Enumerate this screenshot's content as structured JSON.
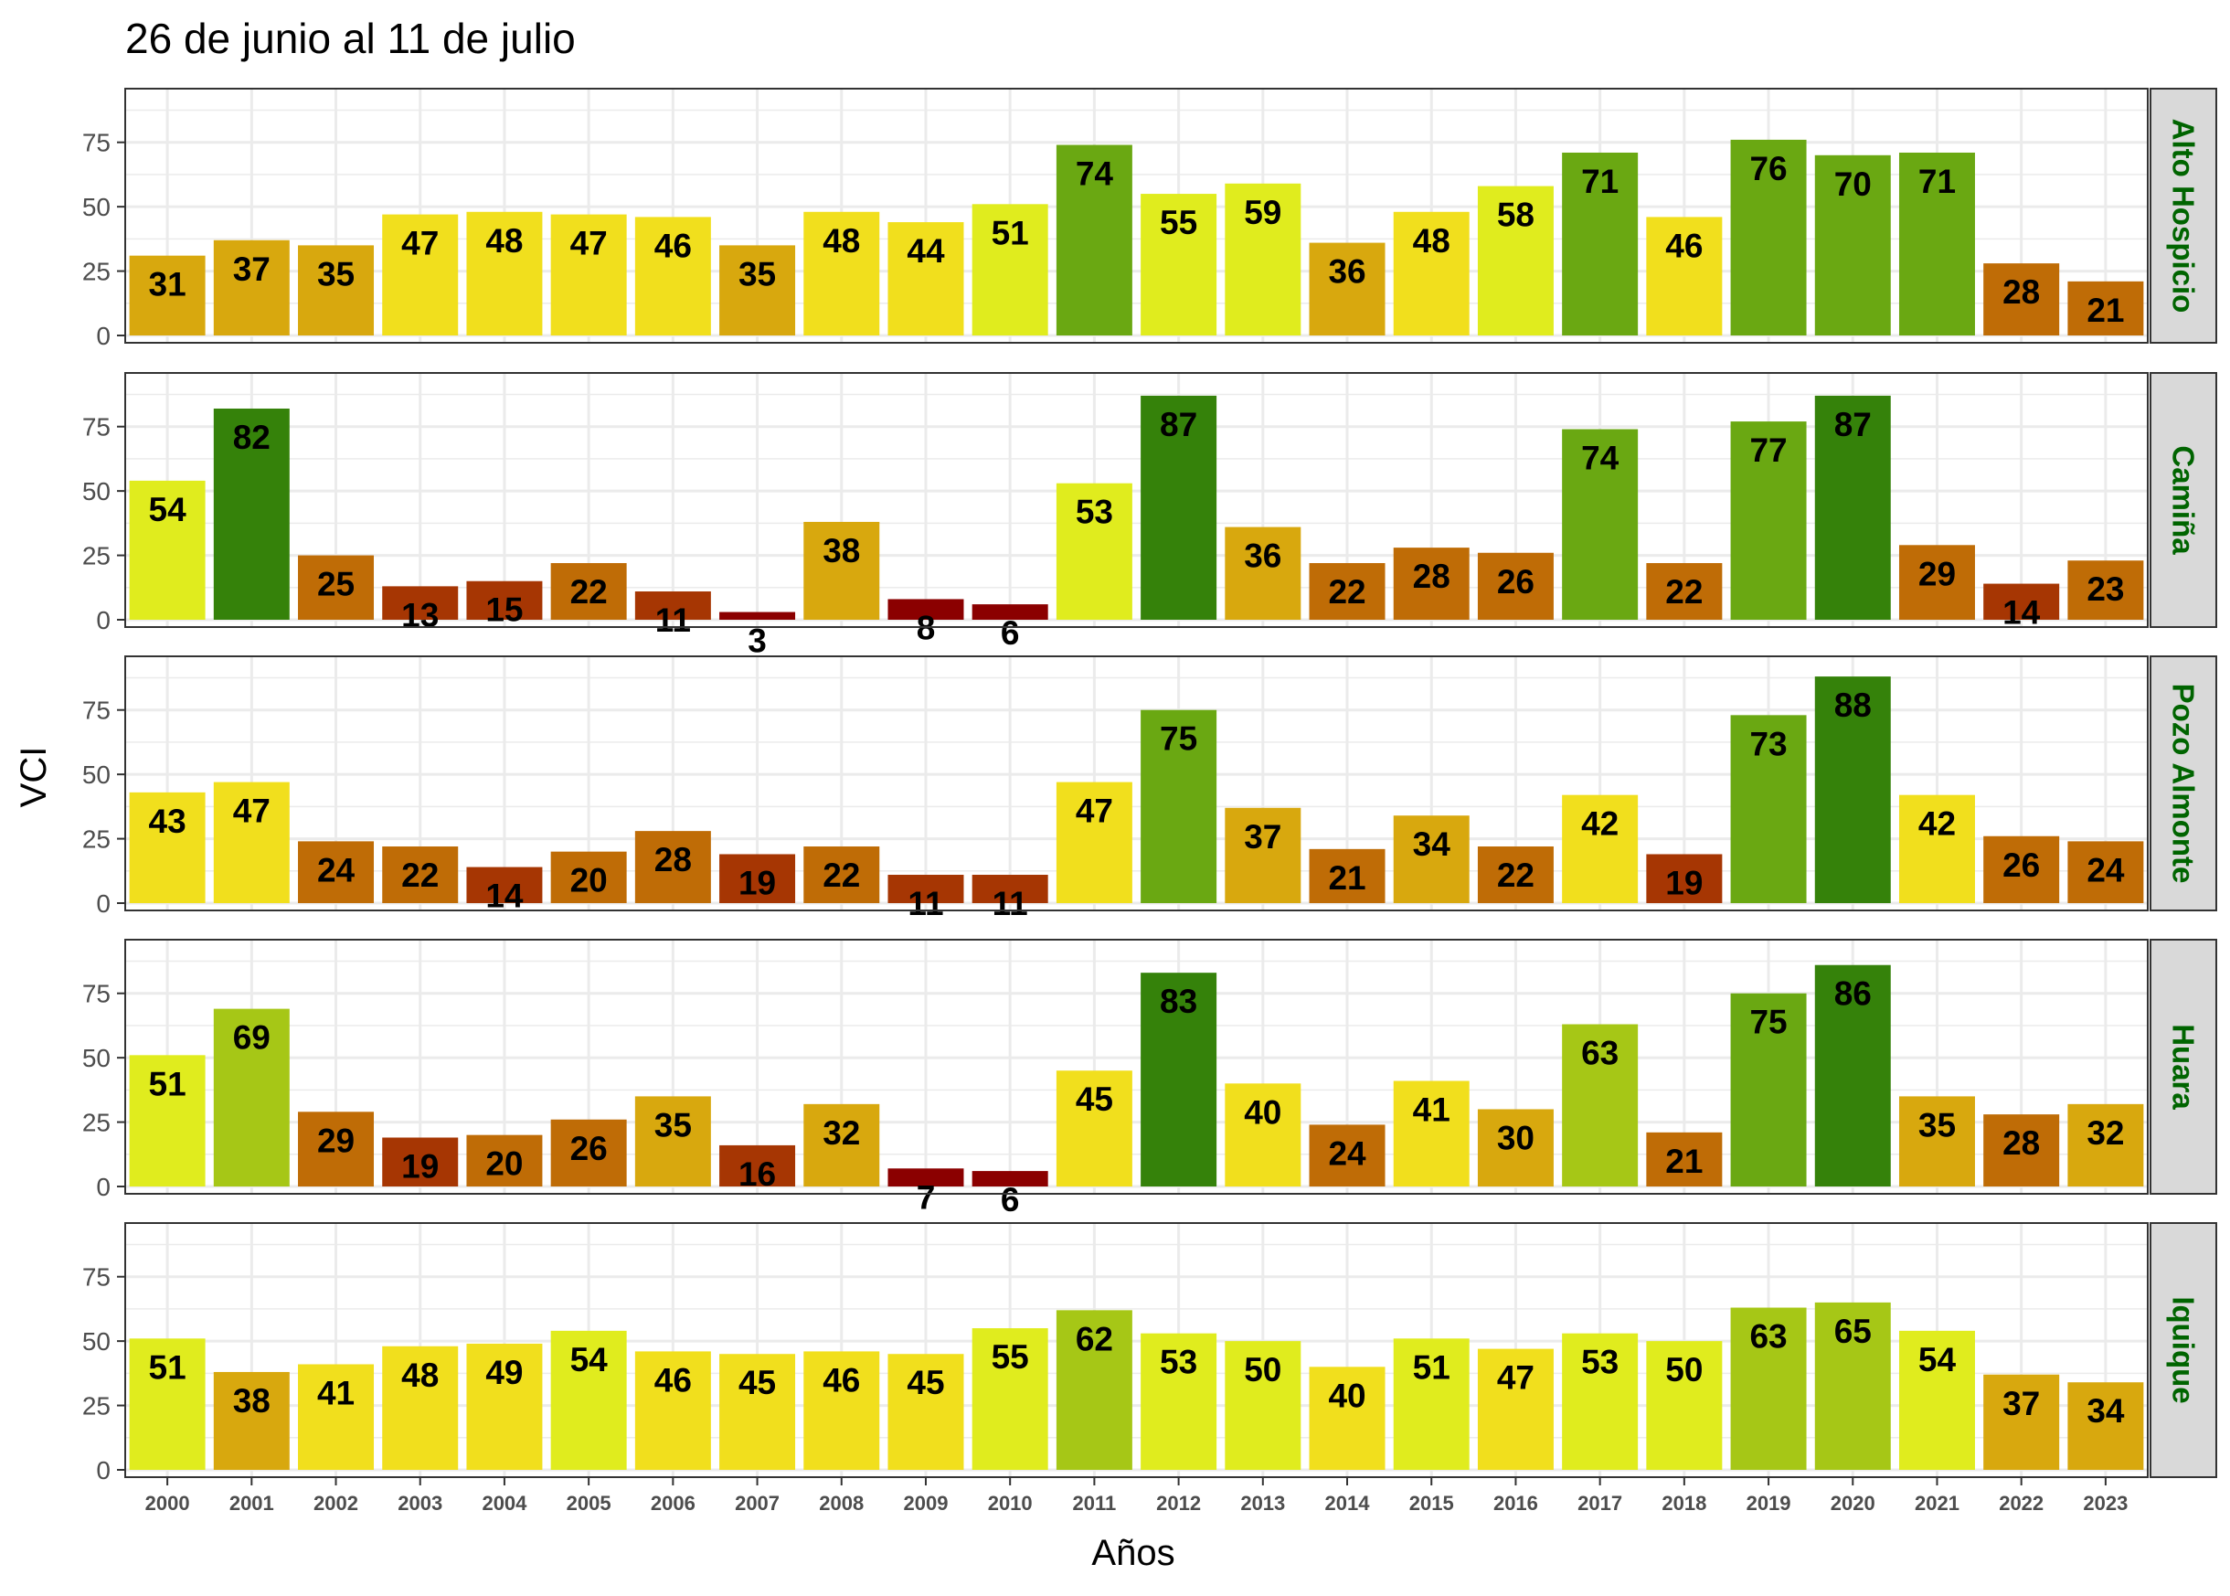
{
  "chart_data": {
    "type": "bar",
    "title": "26 de junio al 11 de julio",
    "xlabel": "Años",
    "ylabel": "VCI",
    "ylim": [
      0,
      93
    ],
    "yticks": [
      0,
      25,
      50,
      75
    ],
    "grid": true,
    "legend": "none",
    "categories": [
      "2000",
      "2001",
      "2002",
      "2003",
      "2004",
      "2005",
      "2006",
      "2007",
      "2008",
      "2009",
      "2010",
      "2011",
      "2012",
      "2013",
      "2014",
      "2015",
      "2016",
      "2017",
      "2018",
      "2019",
      "2020",
      "2021",
      "2022",
      "2023"
    ],
    "facets": [
      {
        "name": "Alto Hospicio",
        "values": [
          31,
          37,
          35,
          47,
          48,
          47,
          46,
          35,
          48,
          44,
          51,
          74,
          55,
          59,
          36,
          48,
          58,
          71,
          46,
          76,
          70,
          71,
          28,
          21
        ]
      },
      {
        "name": "Camiña",
        "values": [
          54,
          82,
          25,
          13,
          15,
          22,
          11,
          3,
          38,
          8,
          6,
          53,
          87,
          36,
          22,
          28,
          26,
          74,
          22,
          77,
          87,
          29,
          14,
          23
        ]
      },
      {
        "name": "Pozo Almonte",
        "values": [
          43,
          47,
          24,
          22,
          14,
          20,
          28,
          19,
          22,
          11,
          11,
          47,
          75,
          37,
          21,
          34,
          22,
          42,
          19,
          73,
          88,
          42,
          26,
          24
        ]
      },
      {
        "name": "Huara",
        "values": [
          51,
          69,
          29,
          19,
          20,
          26,
          35,
          16,
          32,
          7,
          6,
          45,
          83,
          40,
          24,
          41,
          30,
          63,
          21,
          75,
          86,
          35,
          28,
          32
        ]
      },
      {
        "name": "Iquique",
        "values": [
          51,
          38,
          41,
          48,
          49,
          54,
          46,
          45,
          46,
          45,
          55,
          62,
          53,
          50,
          40,
          51,
          47,
          53,
          50,
          63,
          65,
          54,
          37,
          34
        ]
      }
    ],
    "color_scale": [
      {
        "min": 0,
        "max": 10,
        "color": "#8b0000"
      },
      {
        "min": 10,
        "max": 20,
        "color": "#a63603"
      },
      {
        "min": 20,
        "max": 30,
        "color": "#bf6c06"
      },
      {
        "min": 30,
        "max": 40,
        "color": "#d8a80e"
      },
      {
        "min": 40,
        "max": 50,
        "color": "#f1df1d"
      },
      {
        "min": 50,
        "max": 60,
        "color": "#e0ec1e"
      },
      {
        "min": 60,
        "max": 70,
        "color": "#a6c716"
      },
      {
        "min": 70,
        "max": 80,
        "color": "#6aa812"
      },
      {
        "min": 80,
        "max": 100,
        "color": "#35820a"
      }
    ],
    "strip_color": "#d9d9d9",
    "strip_text_color": "#006400",
    "grid_color": "#ebebeb"
  }
}
